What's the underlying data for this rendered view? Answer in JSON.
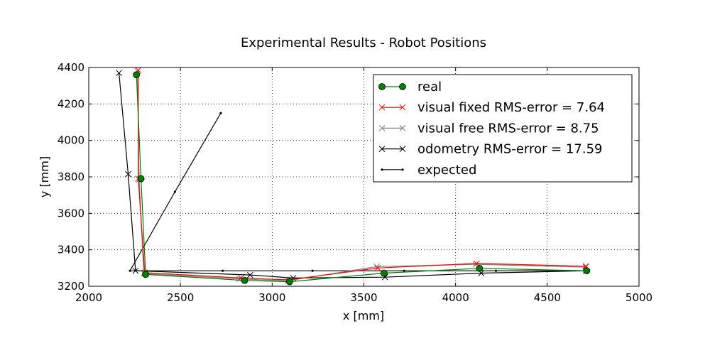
{
  "chart_data": {
    "type": "line",
    "title": "Experimental Results - Robot Positions",
    "xlabel": "x [mm]",
    "ylabel": "y [mm]",
    "xlim": [
      2000,
      5000
    ],
    "ylim": [
      3200,
      4400
    ],
    "xticks": [
      2000,
      2500,
      3000,
      3500,
      4000,
      4500,
      5000
    ],
    "yticks": [
      3200,
      3400,
      3600,
      3800,
      4000,
      4200,
      4400
    ],
    "grid": true,
    "legend_position": "top-right",
    "series": [
      {
        "name": "real",
        "color": "#008000",
        "marker": "circle",
        "points": [
          [
            2260,
            4360
          ],
          [
            2285,
            3790
          ],
          [
            2310,
            3265
          ],
          [
            2850,
            3232
          ],
          [
            3095,
            3225
          ],
          [
            3610,
            3272
          ],
          [
            4130,
            3298
          ],
          [
            4715,
            3285
          ]
        ]
      },
      {
        "name": "visual fixed RMS-error = 7.64",
        "color": "#ff0000",
        "marker": "x",
        "points": [
          [
            2270,
            4385
          ],
          [
            2270,
            3790
          ],
          [
            2305,
            3275
          ],
          [
            2830,
            3245
          ],
          [
            3090,
            3235
          ],
          [
            3575,
            3300
          ],
          [
            4115,
            3325
          ],
          [
            4710,
            3310
          ]
        ]
      },
      {
        "name": "visual free RMS-error = 8.75",
        "color": "#808080",
        "marker": "x",
        "points": [
          [
            2265,
            4380
          ],
          [
            2275,
            3785
          ],
          [
            2300,
            3270
          ],
          [
            2820,
            3240
          ],
          [
            3085,
            3230
          ],
          [
            3570,
            3308
          ],
          [
            4110,
            3320
          ],
          [
            4710,
            3305
          ]
        ]
      },
      {
        "name": "odometry RMS-error = 17.59",
        "color": "#000000",
        "marker": "x",
        "points": [
          [
            2165,
            4370
          ],
          [
            2215,
            3815
          ],
          [
            2255,
            3285
          ],
          [
            2880,
            3262
          ],
          [
            3115,
            3245
          ],
          [
            3615,
            3250
          ],
          [
            4140,
            3272
          ],
          [
            4710,
            3285
          ]
        ]
      },
      {
        "name": "expected",
        "color": "#000000",
        "marker": "dot",
        "points": [
          [
            2720,
            4150
          ],
          [
            2470,
            3718
          ],
          [
            2225,
            3285
          ],
          [
            2730,
            3285
          ],
          [
            3220,
            3285
          ],
          [
            3720,
            3285
          ],
          [
            4220,
            3285
          ],
          [
            4715,
            3285
          ]
        ]
      }
    ]
  }
}
